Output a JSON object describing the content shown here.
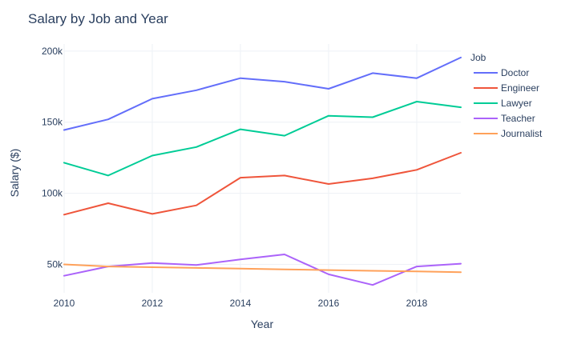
{
  "chart_data": {
    "type": "line",
    "title": "Salary by Job and Year",
    "xlabel": "Year",
    "ylabel": "Salary ($)",
    "xlim": [
      2010,
      2019
    ],
    "ylim": [
      30000,
      205000
    ],
    "x_ticks": [
      2010,
      2012,
      2014,
      2016,
      2018
    ],
    "x_tick_labels": [
      "2010",
      "2012",
      "2014",
      "2016",
      "2018"
    ],
    "y_ticks": [
      50000,
      100000,
      150000,
      200000
    ],
    "y_tick_labels": [
      "50k",
      "100k",
      "150k",
      "200k"
    ],
    "grid": true,
    "legend": {
      "title": "Job",
      "placement": "right"
    },
    "x": [
      2010,
      2011,
      2012,
      2013,
      2014,
      2015,
      2016,
      2017,
      2018,
      2019
    ],
    "series": [
      {
        "name": "Doctor",
        "color": "#636efa",
        "values": [
          144500,
          152000,
          166500,
          172500,
          181000,
          178500,
          173500,
          184500,
          181000,
          195500
        ]
      },
      {
        "name": "Engineer",
        "color": "#ef553b",
        "values": [
          85000,
          93000,
          85500,
          91500,
          111000,
          112500,
          106500,
          110500,
          116500,
          128500
        ]
      },
      {
        "name": "Lawyer",
        "color": "#00cc96",
        "values": [
          121500,
          112500,
          126500,
          132500,
          145000,
          140500,
          154500,
          153500,
          164500,
          160500
        ]
      },
      {
        "name": "Teacher",
        "color": "#ab63fa",
        "values": [
          42000,
          48500,
          51000,
          49500,
          53500,
          57000,
          43000,
          35500,
          48500,
          50500
        ]
      },
      {
        "name": "Journalist",
        "color": "#ffa15a",
        "values": [
          50000,
          48500,
          48000,
          47500,
          47000,
          46500,
          46000,
          45500,
          45000,
          44500
        ]
      }
    ]
  }
}
